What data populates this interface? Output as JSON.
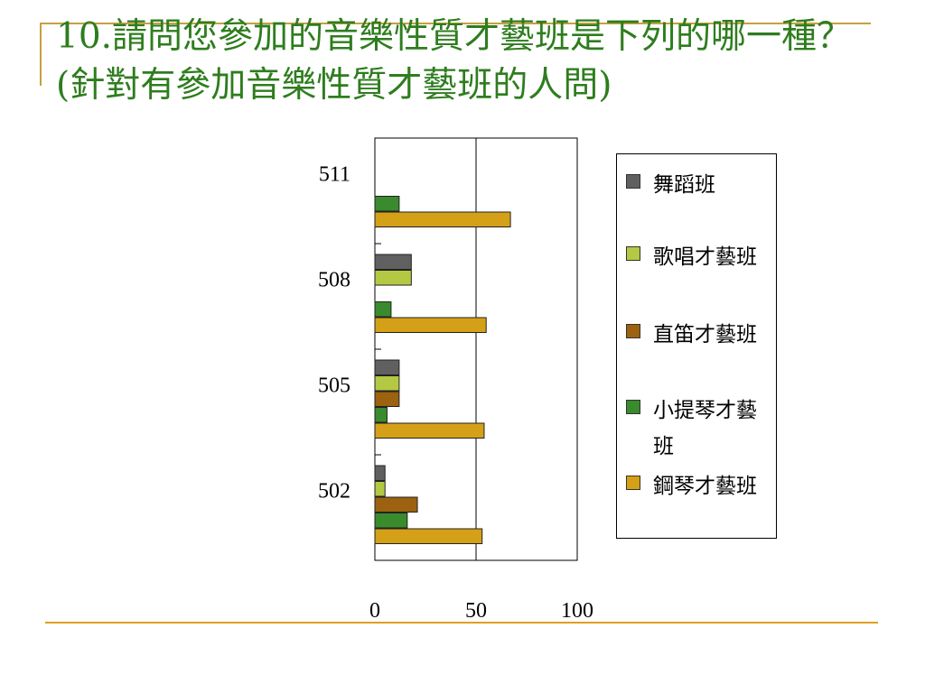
{
  "slide": {
    "title": "10.請問您參加的音樂性質才藝班是下列的哪一種？(針對有參加音樂性質才藝班的人問)"
  },
  "chart_data": {
    "type": "bar",
    "orientation": "horizontal",
    "categories": [
      "511",
      "508",
      "505",
      "502"
    ],
    "series": [
      {
        "name": "舞蹈班",
        "color": "#606060",
        "values": [
          0,
          18,
          12,
          5
        ]
      },
      {
        "name": "歌唱才藝班",
        "color": "#b4c843",
        "values": [
          0,
          18,
          12,
          5
        ]
      },
      {
        "name": "直笛才藝班",
        "color": "#9c6210",
        "values": [
          0,
          0,
          12,
          21
        ]
      },
      {
        "name": "小提琴才藝班",
        "color": "#3a8a2e",
        "values": [
          12,
          8,
          6,
          16
        ]
      },
      {
        "name": "鋼琴才藝班",
        "color": "#d4a017",
        "values": [
          67,
          55,
          54,
          53
        ]
      }
    ],
    "x_ticks": [
      "0",
      "50",
      "100"
    ],
    "xlim": [
      0,
      100
    ],
    "grid": "vertical line at 50",
    "legend_position": "right"
  }
}
